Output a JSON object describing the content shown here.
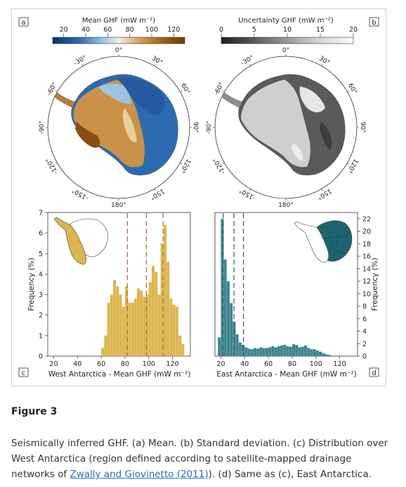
{
  "figure": {
    "panel_a": {
      "letter": "a",
      "colorbar_label": "Mean GHF (mW m⁻²)",
      "colorbar_ticks": [
        "20",
        "40",
        "60",
        "80",
        "100",
        "120"
      ],
      "colorbar_colors": [
        "#0b2f6e",
        "#2c6bb0",
        "#9ec3e0",
        "#f2eee6",
        "#d6a45a",
        "#a8621a",
        "#6b3a0c"
      ]
    },
    "panel_b": {
      "letter": "b",
      "colorbar_label": "Uncertainty GHF (mW m⁻²)",
      "colorbar_ticks": [
        "0",
        "5",
        "10",
        "15",
        "20"
      ],
      "colorbar_colors": [
        "#1e1e1e",
        "#5a5a5a",
        "#9a9a9a",
        "#d6d6d6",
        "#ffffff"
      ]
    },
    "map_longitude_labels": {
      "top": "0°",
      "bottom": "180°",
      "left_upper": "-30°",
      "right_upper": "30°",
      "left_mid_upper": "-60°",
      "right_mid_upper": "60°",
      "left_mid": "-90°",
      "right_mid": "90°",
      "left_mid_lower": "-120°",
      "right_mid_lower": "120°",
      "left_lower": "-150°",
      "right_lower": "150°"
    },
    "panel_c": {
      "letter": "c",
      "color": "#dcb64f",
      "dash_color": "#a86b3a"
    },
    "panel_d": {
      "letter": "d",
      "color": "#3f8590",
      "dash_color": "#2e5d64"
    }
  },
  "chart_data": [
    {
      "type": "bar",
      "panel": "c",
      "xlabel": "West Antarctica - Mean GHF (mW m⁻²)",
      "ylabel": "Frequency (%)",
      "xlim": [
        15,
        135
      ],
      "ylim": [
        0,
        7
      ],
      "xticks": [
        20,
        40,
        60,
        80,
        100,
        120
      ],
      "yticks": [
        0,
        1,
        2,
        3,
        4,
        5,
        6,
        7
      ],
      "bin_width": 2.5,
      "bin_starts": [
        60,
        62.5,
        65,
        67.5,
        70,
        72.5,
        75,
        77.5,
        80,
        82.5,
        85,
        87.5,
        90,
        92.5,
        95,
        97.5,
        100,
        102.5,
        105,
        107.5,
        110,
        112.5,
        115,
        117.5,
        120,
        122.5,
        125,
        127.5
      ],
      "values": [
        0.4,
        1.0,
        2.6,
        3.0,
        3.7,
        3.4,
        3.0,
        2.4,
        3.4,
        2.6,
        2.6,
        2.8,
        3.3,
        3.2,
        2.9,
        3.0,
        3.6,
        4.4,
        4.1,
        3.0,
        5.5,
        6.4,
        4.6,
        2.8,
        2.5,
        2.4,
        1.0,
        0.6
      ],
      "dashed_lines_x": [
        82,
        98,
        112
      ]
    },
    {
      "type": "bar",
      "panel": "d",
      "xlabel": "East Antarctica - Mean GHF (mW m⁻²)",
      "ylabel": "Frequency (%)",
      "xlim": [
        15,
        135
      ],
      "ylim": [
        0,
        23
      ],
      "xticks": [
        20,
        40,
        60,
        80,
        100,
        120
      ],
      "yticks": [
        0,
        2,
        4,
        6,
        8,
        10,
        12,
        14,
        16,
        18,
        20,
        22
      ],
      "bin_width": 2.5,
      "bin_starts": [
        17.5,
        20,
        22.5,
        25,
        27.5,
        30,
        32.5,
        35,
        37.5,
        40,
        42.5,
        45,
        47.5,
        50,
        52.5,
        55,
        57.5,
        60,
        62.5,
        65,
        67.5,
        70,
        72.5,
        75,
        77.5,
        80,
        82.5,
        85,
        87.5,
        90,
        92.5,
        95,
        97.5,
        100,
        102.5,
        105,
        107.5,
        110
      ],
      "values": [
        3.0,
        22.0,
        15.5,
        12.0,
        8.5,
        5.5,
        3.5,
        2.2,
        1.8,
        1.4,
        1.2,
        1.1,
        1.3,
        1.2,
        1.4,
        1.3,
        1.3,
        1.4,
        1.6,
        1.4,
        1.6,
        1.7,
        1.8,
        1.6,
        1.5,
        1.9,
        1.8,
        1.4,
        1.5,
        1.7,
        1.3,
        1.1,
        1.1,
        0.9,
        0.7,
        0.5,
        0.3,
        0.2
      ],
      "dashed_lines_x": [
        22,
        31,
        39
      ]
    }
  ],
  "caption": {
    "title": "Figure 3",
    "text_before_link": "Seismically inferred GHF. (a) Mean. (b) Standard deviation. (c) Distribution over West Antarctica (region defined according to satellite-mapped drainage networks of ",
    "link_text": "Zwally and Giovinetto (2011)",
    "text_after_link": "). (d) Same as (c), East Antarctica."
  }
}
